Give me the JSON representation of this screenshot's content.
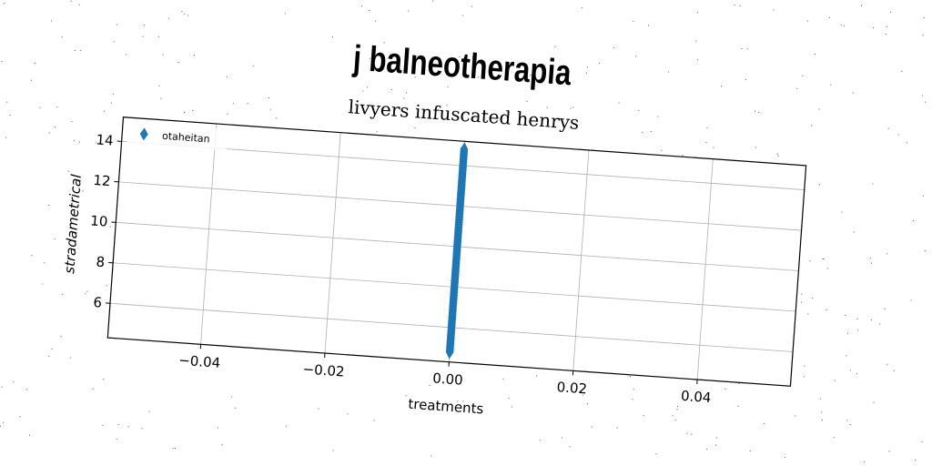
{
  "chart_data": {
    "type": "scatter",
    "suptitle": "j balneotherapia",
    "title": "livyers infuscated henrys",
    "xlabel": "treatments",
    "ylabel": "stradametrical",
    "xlim": [
      -0.055,
      0.055
    ],
    "ylim": [
      4.3,
      15.2
    ],
    "xticks": [
      -0.04,
      -0.02,
      0.0,
      0.02,
      0.04
    ],
    "xtick_labels": [
      "−0.04",
      "−0.02",
      "0.00",
      "0.02",
      "0.04"
    ],
    "yticks": [
      6,
      8,
      10,
      12,
      14
    ],
    "ytick_labels": [
      "6",
      "8",
      "10",
      "12",
      "14"
    ],
    "grid": true,
    "legend_position": "top-left",
    "series": [
      {
        "name": "otaheitan",
        "marker": "thin-diamond",
        "color": "#1f77b4",
        "x": [
          0,
          0,
          0,
          0,
          0,
          0,
          0,
          0,
          0,
          0,
          0,
          0,
          0,
          0,
          0,
          0,
          0,
          0,
          0,
          0,
          0,
          0,
          0,
          0,
          0,
          0,
          0,
          0,
          0,
          0,
          0,
          0,
          0,
          0,
          0,
          0,
          0,
          0,
          0,
          0,
          0,
          0,
          0,
          0,
          0,
          0,
          0,
          0,
          0,
          0,
          0,
          0,
          0,
          0,
          0,
          0,
          0,
          0,
          0,
          0,
          0,
          0,
          0,
          0,
          0,
          0,
          0,
          0,
          0,
          0,
          0,
          0,
          0,
          0,
          0,
          0,
          0,
          0,
          0,
          0,
          0,
          0,
          0,
          0,
          0,
          0,
          0,
          0,
          0,
          0,
          0,
          0,
          0,
          0,
          0,
          0,
          0,
          0,
          0,
          0,
          0
        ],
        "y": [
          4.8,
          4.9,
          5.0,
          5.1,
          5.2,
          5.3,
          5.4,
          5.5,
          5.6,
          5.7,
          5.8,
          5.9,
          6.0,
          6.1,
          6.2,
          6.3,
          6.4,
          6.5,
          6.6,
          6.7,
          6.8,
          6.9,
          7.0,
          7.1,
          7.2,
          7.3,
          7.4,
          7.5,
          7.6,
          7.7,
          7.8,
          7.9,
          8.0,
          8.1,
          8.2,
          8.3,
          8.4,
          8.5,
          8.6,
          8.7,
          8.8,
          8.9,
          9.0,
          9.1,
          9.2,
          9.3,
          9.4,
          9.5,
          9.6,
          9.7,
          9.8,
          9.9,
          10.0,
          10.1,
          10.2,
          10.3,
          10.4,
          10.5,
          10.6,
          10.7,
          10.8,
          10.9,
          11.0,
          11.1,
          11.2,
          11.3,
          11.4,
          11.5,
          11.6,
          11.7,
          11.8,
          11.9,
          12.0,
          12.1,
          12.2,
          12.3,
          12.4,
          12.5,
          12.6,
          12.7,
          12.8,
          12.9,
          13.0,
          13.1,
          13.2,
          13.3,
          13.4,
          13.5,
          13.6,
          13.7,
          13.8,
          13.9,
          14.0,
          14.1,
          14.2,
          14.3,
          14.4,
          14.5,
          14.6,
          14.7,
          14.8
        ]
      }
    ]
  }
}
